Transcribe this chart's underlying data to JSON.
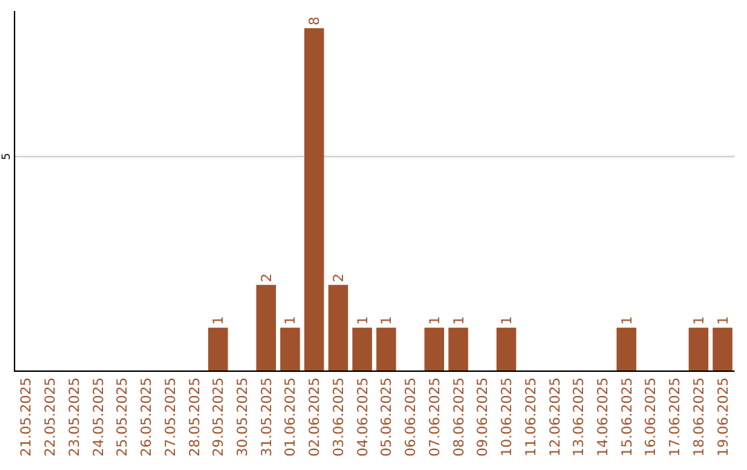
{
  "chart_data": {
    "type": "bar",
    "categories": [
      "21.05.2025",
      "22.05.2025",
      "23.05.2025",
      "24.05.2025",
      "25.05.2025",
      "26.05.2025",
      "27.05.2025",
      "28.05.2025",
      "29.05.2025",
      "30.05.2025",
      "31.05.2025",
      "01.06.2025",
      "02.06.2025",
      "03.06.2025",
      "04.06.2025",
      "05.06.2025",
      "06.06.2025",
      "07.06.2025",
      "08.06.2025",
      "09.06.2025",
      "10.06.2025",
      "11.06.2025",
      "12.06.2025",
      "13.06.2025",
      "14.06.2025",
      "15.06.2025",
      "16.06.2025",
      "17.06.2025",
      "18.06.2025",
      "19.06.2025"
    ],
    "values": [
      0,
      0,
      0,
      0,
      0,
      0,
      0,
      0,
      1,
      0,
      2,
      1,
      8,
      2,
      1,
      1,
      0,
      1,
      1,
      0,
      1,
      0,
      0,
      0,
      0,
      1,
      0,
      0,
      1,
      1
    ],
    "value_labels": [
      null,
      null,
      null,
      null,
      null,
      null,
      null,
      null,
      "1",
      null,
      "2",
      "1",
      "8",
      "2",
      "1",
      "1",
      null,
      "1",
      "1",
      null,
      "1",
      null,
      null,
      null,
      null,
      "1",
      null,
      null,
      "1",
      "1"
    ],
    "color": "#a0522d",
    "ylim": [
      0,
      8.4
    ],
    "yticks": [
      5
    ],
    "grid": "y"
  }
}
